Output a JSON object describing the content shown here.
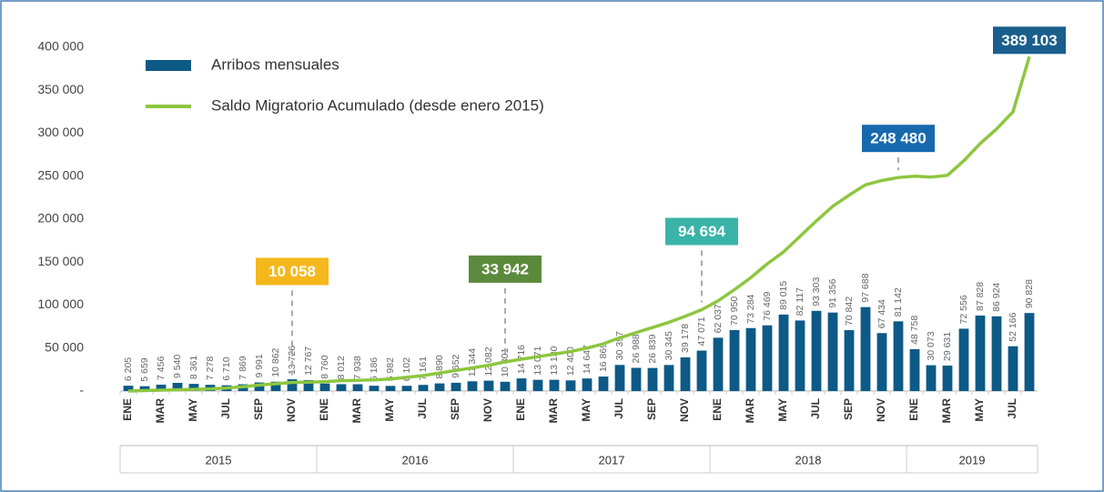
{
  "chart_data": {
    "type": "bar-line",
    "categories": [
      "ENE",
      null,
      "MAR",
      null,
      "MAY",
      null,
      "JUL",
      null,
      "SEP",
      null,
      "NOV",
      null,
      "ENE",
      null,
      "MAR",
      null,
      "MAY",
      null,
      "JUL",
      null,
      "SEP",
      null,
      "NOV",
      null,
      "ENE",
      null,
      "MAR",
      null,
      "MAY",
      null,
      "JUL",
      null,
      "SEP",
      null,
      "NOV",
      null,
      "ENE",
      null,
      "MAR",
      null,
      "MAY",
      null,
      "JUL",
      null,
      "SEP",
      null,
      "NOV",
      null,
      "ENE",
      null,
      "MAR",
      null,
      "MAY",
      null,
      "JUL",
      null
    ],
    "groups": [
      "2015",
      "2016",
      "2017",
      "2018",
      "2019"
    ],
    "ylim": [
      0,
      400000
    ],
    "yticks": [
      {
        "value": 0,
        "label": "-"
      },
      {
        "value": 50000,
        "label": "50 000"
      },
      {
        "value": 100000,
        "label": "100 000"
      },
      {
        "value": 150000,
        "label": "150 000"
      },
      {
        "value": 200000,
        "label": "200 000"
      },
      {
        "value": 250000,
        "label": "250 000"
      },
      {
        "value": 300000,
        "label": "300 000"
      },
      {
        "value": 350000,
        "label": "350 000"
      },
      {
        "value": 400000,
        "label": "400 000"
      }
    ],
    "series": [
      {
        "name": "Arribos mensuales",
        "type": "bar",
        "color": "#0d5a87",
        "values": [
          6205,
          5659,
          7456,
          9540,
          8361,
          7278,
          6710,
          7869,
          9991,
          10862,
          13726,
          12767,
          8760,
          8012,
          7938,
          6186,
          5982,
          6102,
          7161,
          8890,
          9652,
          11344,
          12082,
          10801,
          14716,
          13071,
          13130,
          12400,
          14647,
          16869,
          30397,
          26988,
          26839,
          30345,
          39178,
          47071,
          62037,
          70950,
          73284,
          76469,
          89015,
          82117,
          93303,
          91356,
          70842,
          97688,
          67434,
          81142,
          48758,
          30073,
          29631,
          72556,
          87828,
          86924,
          52166,
          90828
        ],
        "value_labels": [
          "6 205",
          "5 659",
          "7 456",
          "9 540",
          "8 361",
          "7 278",
          "6 710",
          "7 869",
          "9 991",
          "10 862",
          "13 726",
          "12 767",
          "8 760",
          "8 012",
          "7 938",
          "6 186",
          "5 982",
          "6 102",
          "7 161",
          "8 890",
          "9 652",
          "11 344",
          "12 082",
          "10 801",
          "14 716",
          "13 071",
          "13 130",
          "12 400",
          "14 647",
          "16 869",
          "30 397",
          "26 988",
          "26 839",
          "30 345",
          "39 178",
          "47 071",
          "62 037",
          "70 950",
          "73 284",
          "76 469",
          "89 015",
          "82 117",
          "93 303",
          "91 356",
          "70 842",
          "97 688",
          "67 434",
          "81 142",
          "48 758",
          "30 073",
          "29 631",
          "72 556",
          "87 828",
          "86 924",
          "52 166",
          "90 828"
        ]
      },
      {
        "name": "Saldo Migratorio Acumulado (desde enero 2015)",
        "type": "line",
        "color": "#8dc63f",
        "values": [
          0,
          500,
          1000,
          1500,
          2000,
          2500,
          3500,
          5000,
          7000,
          8500,
          10058,
          10300,
          11000,
          12000,
          12500,
          13000,
          14000,
          16000,
          18000,
          21000,
          24000,
          27000,
          30000,
          33942,
          37000,
          40000,
          43000,
          46000,
          50000,
          55000,
          62000,
          68000,
          74000,
          80000,
          87000,
          94694,
          105000,
          118000,
          132000,
          148000,
          162000,
          180000,
          198000,
          215000,
          228000,
          240000,
          245000,
          248480,
          250000,
          249000,
          251000,
          268000,
          288000,
          305000,
          325000,
          389103
        ],
        "value_labels": [
          null,
          null,
          null,
          null,
          null,
          null,
          null,
          null,
          null,
          null,
          "10 058",
          null,
          null,
          null,
          null,
          null,
          null,
          null,
          null,
          null,
          null,
          null,
          null,
          "33 942",
          null,
          null,
          null,
          null,
          null,
          null,
          null,
          null,
          null,
          null,
          null,
          "94 694",
          null,
          null,
          null,
          null,
          null,
          null,
          null,
          null,
          null,
          null,
          null,
          "248 480",
          null,
          null,
          null,
          null,
          null,
          null,
          null,
          "389 103"
        ],
        "label_colors": [
          null,
          null,
          null,
          null,
          null,
          null,
          null,
          null,
          null,
          null,
          "#f5b81c",
          null,
          null,
          null,
          null,
          null,
          null,
          null,
          null,
          null,
          null,
          null,
          null,
          "#5b8a3c",
          null,
          null,
          null,
          null,
          null,
          null,
          null,
          null,
          null,
          null,
          null,
          "#3ab3a8",
          null,
          null,
          null,
          null,
          null,
          null,
          null,
          null,
          null,
          null,
          null,
          "#1769ae",
          null,
          null,
          null,
          null,
          null,
          null,
          null,
          "#1a5e8c"
        ]
      }
    ]
  }
}
